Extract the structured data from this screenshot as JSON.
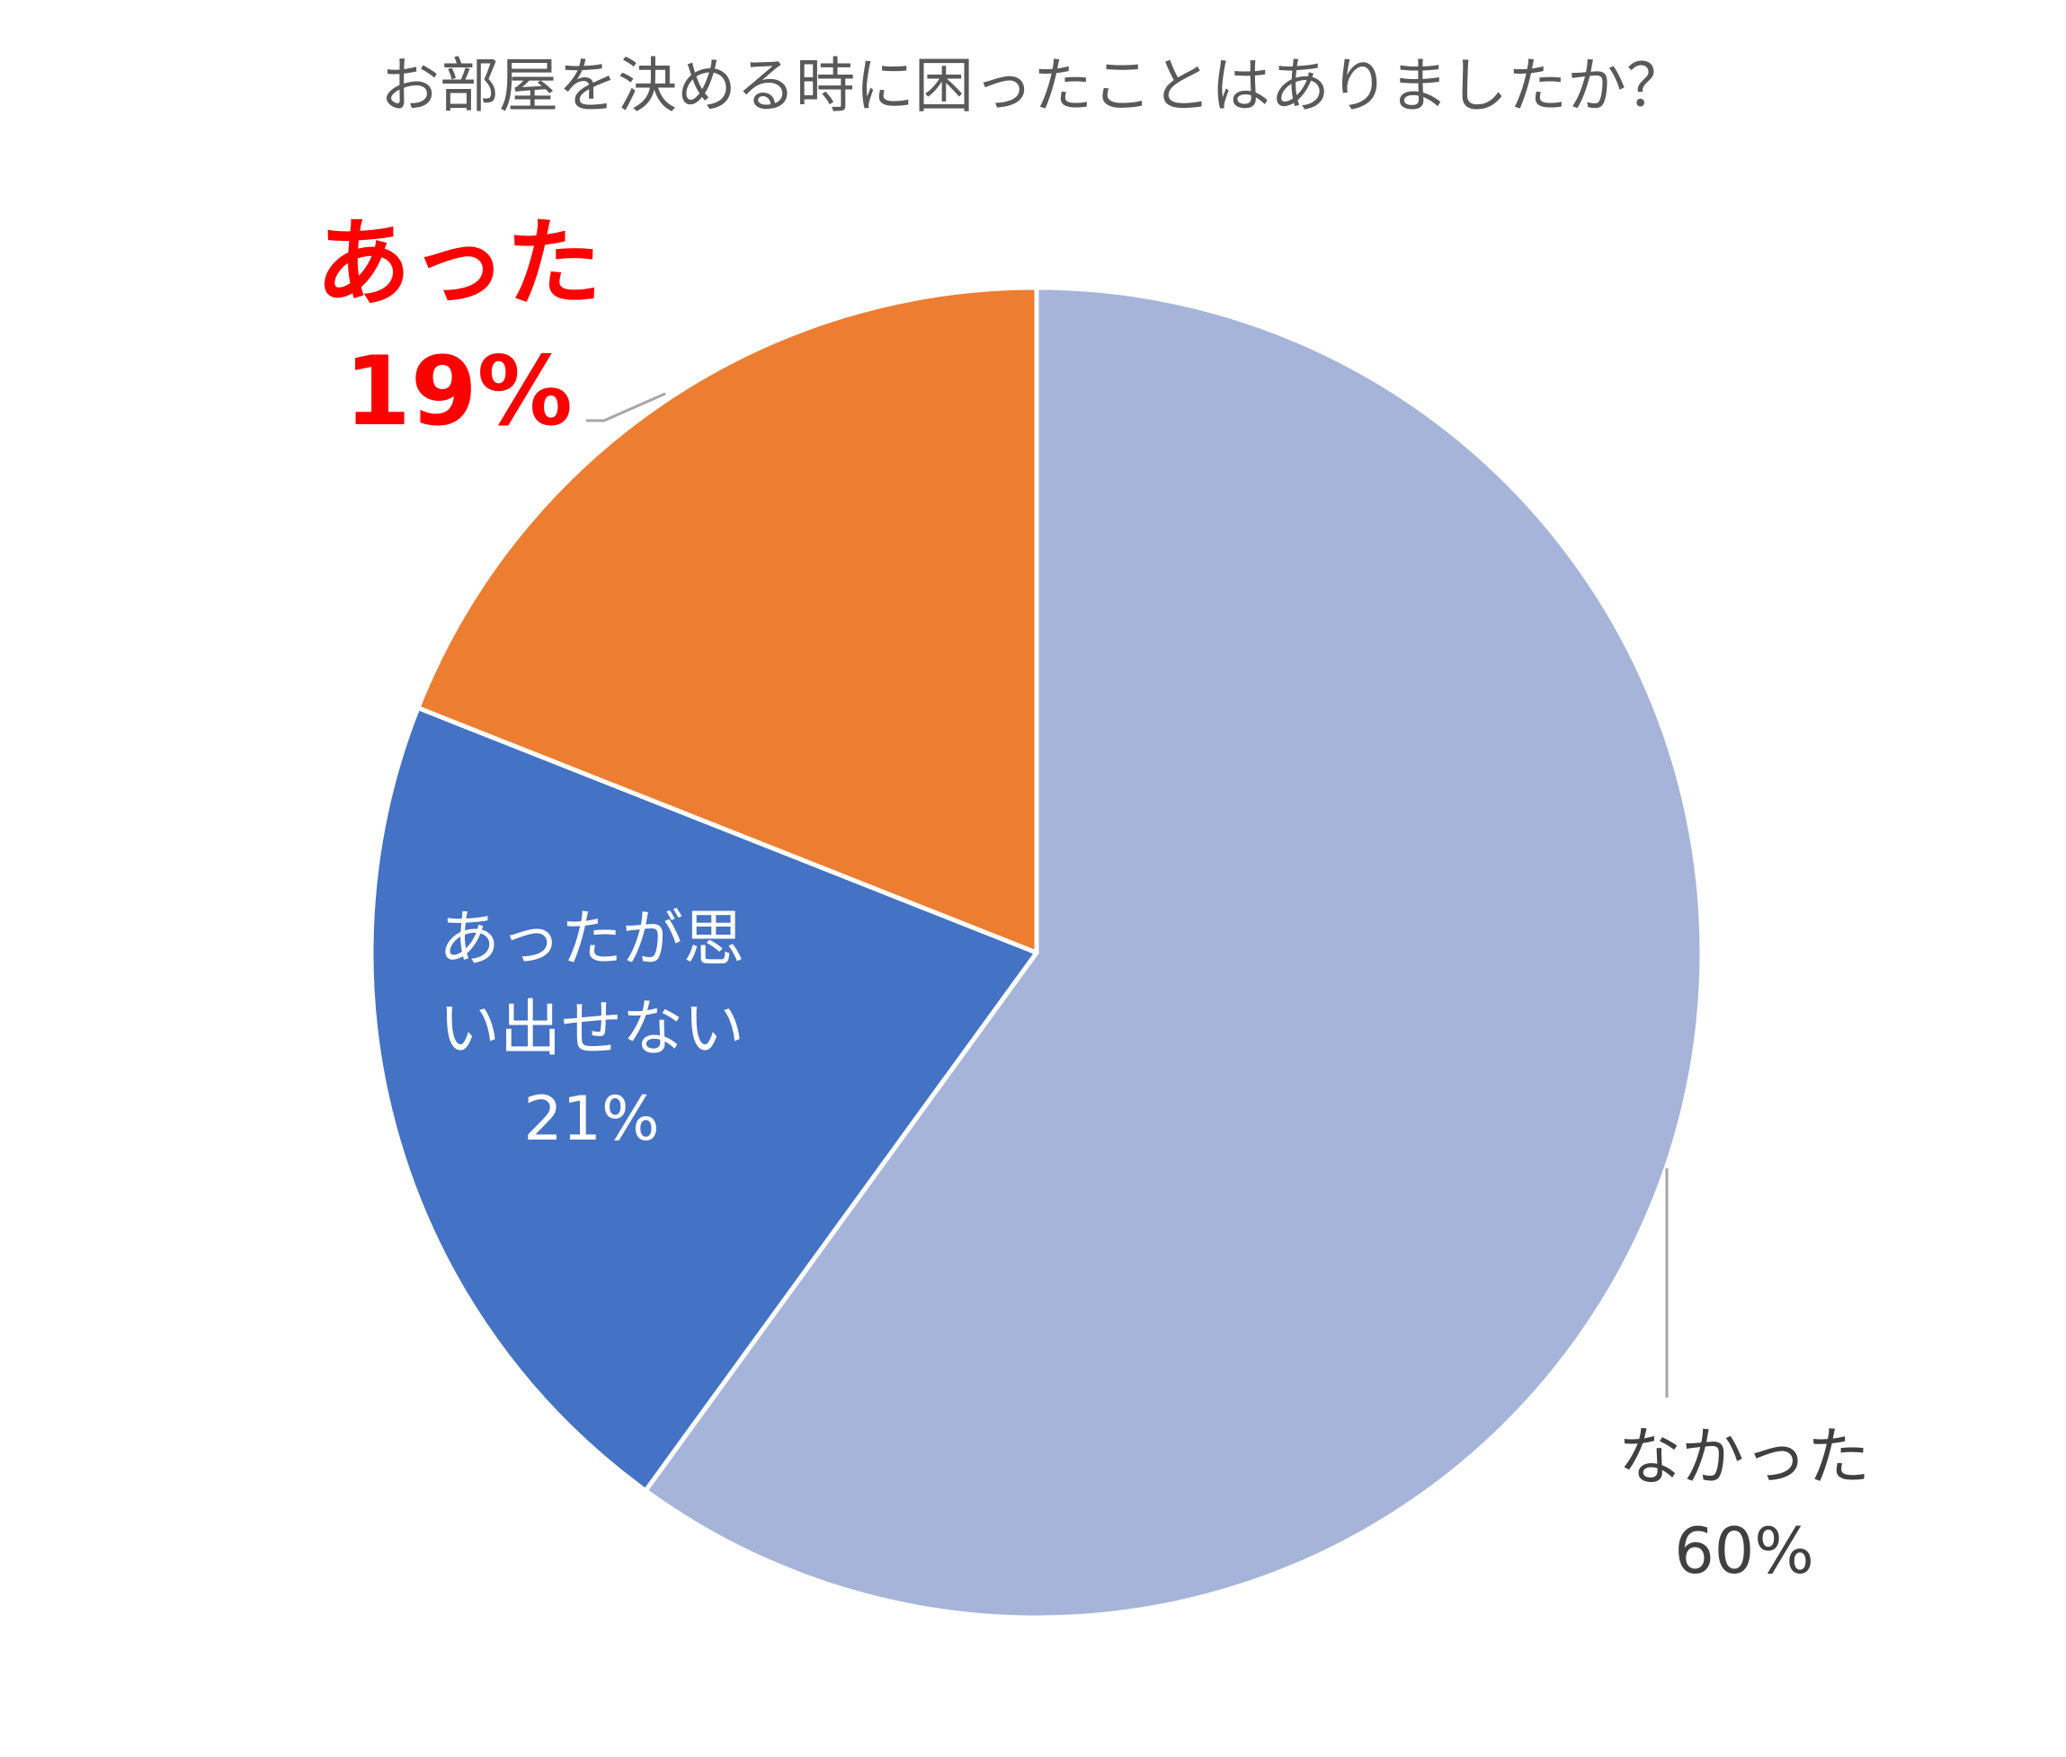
{
  "chart_data": {
    "type": "pie",
    "title": "お部屋を決める時に困ったことはありましたか？",
    "slices": [
      {
        "label": "なかった",
        "value": 60,
        "value_label": "60%",
        "color": "#A6B4D9"
      },
      {
        "label": "あったが思い出せない",
        "label_lines": [
          "あったが思",
          "い出せない"
        ],
        "value": 21,
        "value_label": "21%",
        "color": "#4472C4"
      },
      {
        "label": "あった",
        "value": 19,
        "value_label": "19%",
        "color": "#ED7D31"
      }
    ],
    "start_angle": "12 o'clock",
    "direction": "clockwise",
    "legend": "none",
    "highlight_color": "#FF0000"
  }
}
